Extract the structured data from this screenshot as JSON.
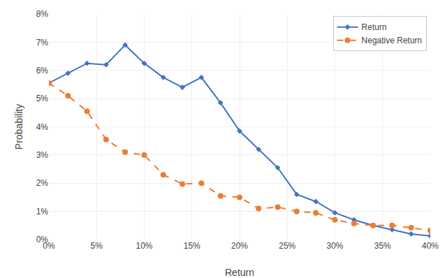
{
  "chart_data": {
    "type": "line",
    "xlabel": "Return",
    "ylabel": "Probability",
    "x": [
      0,
      2,
      4,
      6,
      8,
      10,
      12,
      14,
      16,
      18,
      20,
      22,
      24,
      26,
      28,
      30,
      32,
      34,
      36,
      38,
      40
    ],
    "series": [
      {
        "name": "Return",
        "color": "#4472C4",
        "line_style": "solid",
        "marker": "diamond",
        "values": [
          5.55,
          5.9,
          6.25,
          6.2,
          6.9,
          6.25,
          5.75,
          5.4,
          5.75,
          4.85,
          3.85,
          3.2,
          2.55,
          1.6,
          1.35,
          0.95,
          0.7,
          0.5,
          0.35,
          0.2,
          0.13
        ]
      },
      {
        "name": "Negative Return",
        "color": "#ED7D31",
        "line_style": "dashed",
        "marker": "circle",
        "values": [
          5.55,
          5.1,
          4.55,
          3.55,
          3.1,
          3.0,
          2.3,
          1.97,
          2.0,
          1.55,
          1.5,
          1.1,
          1.15,
          1.0,
          0.95,
          0.7,
          0.57,
          0.5,
          0.5,
          0.42,
          0.32
        ]
      }
    ],
    "xlim": [
      0,
      40
    ],
    "xticks": [
      {
        "value": 0,
        "label": "0%"
      },
      {
        "value": 5,
        "label": "5%"
      },
      {
        "value": 10,
        "label": "10%"
      },
      {
        "value": 15,
        "label": "15%"
      },
      {
        "value": 20,
        "label": "20%"
      },
      {
        "value": 25,
        "label": "25%"
      },
      {
        "value": 30,
        "label": "30%"
      },
      {
        "value": 35,
        "label": "35%"
      },
      {
        "value": 40,
        "label": "40%"
      }
    ],
    "ylim": [
      0,
      8
    ],
    "yticks": [
      {
        "value": 0,
        "label": "0%"
      },
      {
        "value": 1,
        "label": "1%"
      },
      {
        "value": 2,
        "label": "2%"
      },
      {
        "value": 3,
        "label": "3%"
      },
      {
        "value": 4,
        "label": "4%"
      },
      {
        "value": 5,
        "label": "5%"
      },
      {
        "value": 6,
        "label": "6%"
      },
      {
        "value": 7,
        "label": "7%"
      },
      {
        "value": 8,
        "label": "8%"
      }
    ],
    "grid": true,
    "legend": "upper right"
  }
}
